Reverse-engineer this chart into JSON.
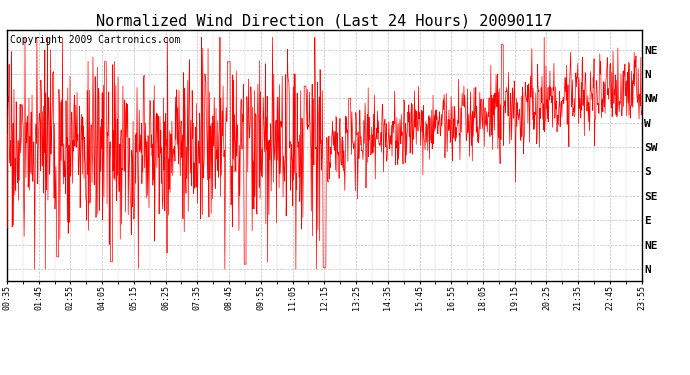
{
  "title": "Normalized Wind Direction (Last 24 Hours) 20090117",
  "copyright": "Copyright 2009 Cartronics.com",
  "y_tick_labels_top_to_bottom": [
    "NE",
    "N",
    "NW",
    "W",
    "SW",
    "S",
    "SE",
    "E",
    "NE",
    "N"
  ],
  "background_color": "#ffffff",
  "line_color": "#ff0000",
  "grid_color": "#c0c0c0",
  "title_fontsize": 11,
  "copyright_fontsize": 7,
  "x_tick_labels": [
    "00:35",
    "01:45",
    "02:55",
    "04:05",
    "05:15",
    "06:25",
    "07:35",
    "08:45",
    "09:55",
    "11:05",
    "12:15",
    "13:25",
    "14:35",
    "15:45",
    "16:55",
    "18:05",
    "19:15",
    "20:25",
    "21:35",
    "22:45",
    "23:55"
  ]
}
